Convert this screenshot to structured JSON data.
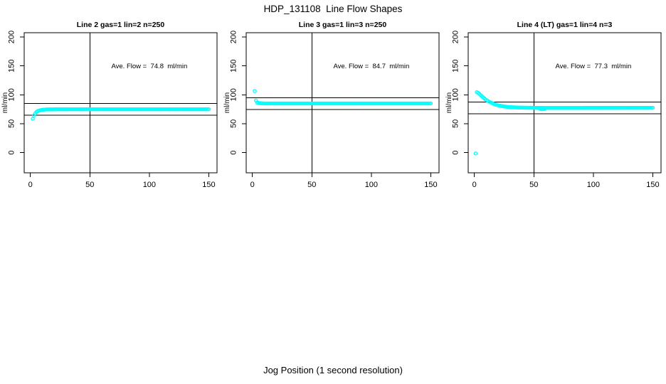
{
  "header": {
    "title": "HDP_131108  Line Flow Shapes"
  },
  "footer": {
    "x_axis_label": "Jog Position (1 second resolution)"
  },
  "style": {
    "point_color": "#00ffff",
    "axis_color": "#000000",
    "background": "#ffffff",
    "text_color": "#000000"
  },
  "chart_data": [
    {
      "type": "scatter",
      "title": "Line 2 gas=1 lin=2 n=250",
      "annotation": "Ave. Flow =  74.8  ml/min",
      "annotation_at": [
        100,
        150
      ],
      "ave_flow_ml_min": 74.8,
      "ylabel": "ml/min",
      "xticks": [
        0,
        50,
        100,
        150
      ],
      "yticks": [
        0,
        50,
        100,
        150,
        200
      ],
      "xlim": [
        -5.2,
        156.9
      ],
      "ylim": [
        -35,
        207.4
      ],
      "vline_x": 50,
      "hlines": [
        84.8,
        64.8
      ],
      "marker": "open-circle",
      "point_interval_x": 1,
      "points_keypoints": [
        [
          2,
          58.5
        ],
        [
          3,
          64
        ],
        [
          4,
          67.5
        ],
        [
          5,
          70
        ],
        [
          6,
          71.5
        ],
        [
          7,
          72.5
        ],
        [
          8,
          73.2
        ],
        [
          10,
          74
        ],
        [
          12,
          74.4
        ],
        [
          15,
          74.7
        ],
        [
          20,
          74.9
        ],
        [
          30,
          75
        ],
        [
          60,
          75
        ],
        [
          100,
          75
        ],
        [
          150,
          75
        ]
      ],
      "outlier_points": [],
      "low_points": []
    },
    {
      "type": "scatter",
      "title": "Line 3 gas=1 lin=3 n=250",
      "annotation": "Ave. Flow =  84.7  ml/min",
      "annotation_at": [
        100,
        150
      ],
      "ave_flow_ml_min": 84.7,
      "ylabel": "ml/min",
      "xticks": [
        0,
        50,
        100,
        150
      ],
      "yticks": [
        0,
        50,
        100,
        150,
        200
      ],
      "xlim": [
        -5.2,
        156.9
      ],
      "ylim": [
        -35,
        207.4
      ],
      "vline_x": 50,
      "hlines": [
        94.7,
        74.7
      ],
      "marker": "open-circle",
      "point_interval_x": 1,
      "points_keypoints": [
        [
          2,
          106.5
        ],
        [
          3,
          90
        ],
        [
          4,
          86.5
        ],
        [
          5,
          86
        ],
        [
          6,
          85.6
        ],
        [
          8,
          85.2
        ],
        [
          10,
          85
        ],
        [
          20,
          85
        ],
        [
          60,
          85
        ],
        [
          100,
          85
        ],
        [
          150,
          85
        ]
      ],
      "outlier_points": [],
      "low_points": []
    },
    {
      "type": "scatter",
      "title": "Line 4 (LT) gas=1 lin=4 n=3",
      "annotation": "Ave. Flow =  77.3  ml/min",
      "annotation_at": [
        100,
        150
      ],
      "ave_flow_ml_min": 77.3,
      "ylabel": "ml/min",
      "xticks": [
        0,
        50,
        100,
        150
      ],
      "yticks": [
        0,
        50,
        100,
        150,
        200
      ],
      "xlim": [
        -5.2,
        156.9
      ],
      "ylim": [
        -35,
        207.4
      ],
      "vline_x": 50,
      "hlines": [
        87.3,
        67.3
      ],
      "marker": "open-circle",
      "point_interval_x": 1,
      "points_keypoints": [
        [
          2,
          104.5
        ],
        [
          3,
          103.5
        ],
        [
          4,
          102
        ],
        [
          5,
          100
        ],
        [
          6,
          98
        ],
        [
          7,
          96
        ],
        [
          8,
          94.5
        ],
        [
          9,
          92.5
        ],
        [
          10,
          91
        ],
        [
          12,
          88.5
        ],
        [
          14,
          86.5
        ],
        [
          16,
          84.5
        ],
        [
          18,
          83
        ],
        [
          20,
          81.8
        ],
        [
          22,
          80.8
        ],
        [
          25,
          79.8
        ],
        [
          28,
          79
        ],
        [
          32,
          78.4
        ],
        [
          36,
          78
        ],
        [
          40,
          77.8
        ],
        [
          45,
          77.6
        ],
        [
          50,
          77.5
        ],
        [
          60,
          77.3
        ],
        [
          80,
          77.3
        ],
        [
          100,
          77.4
        ],
        [
          150,
          77.5
        ]
      ],
      "outlier_points": [
        [
          1,
          -1.5
        ]
      ],
      "low_points": [
        [
          55,
          75.8
        ],
        [
          56,
          75.4
        ],
        [
          57,
          75.2
        ],
        [
          58,
          75.4
        ],
        [
          59,
          75.7
        ]
      ]
    }
  ]
}
